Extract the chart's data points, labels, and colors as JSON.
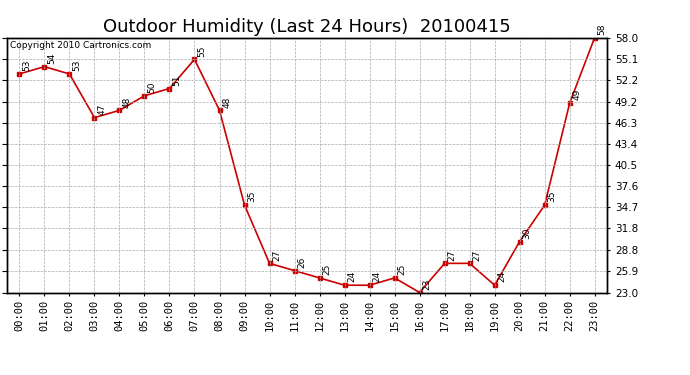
{
  "title": "Outdoor Humidity (Last 24 Hours)  20100415",
  "copyright": "Copyright 2010 Cartronics.com",
  "hours": [
    "00:00",
    "01:00",
    "02:00",
    "03:00",
    "04:00",
    "05:00",
    "06:00",
    "07:00",
    "08:00",
    "09:00",
    "10:00",
    "11:00",
    "12:00",
    "13:00",
    "14:00",
    "15:00",
    "16:00",
    "17:00",
    "18:00",
    "19:00",
    "20:00",
    "21:00",
    "22:00",
    "23:00"
  ],
  "values": [
    53,
    54,
    53,
    47,
    48,
    50,
    51,
    55,
    48,
    35,
    27,
    26,
    25,
    24,
    24,
    25,
    23,
    27,
    27,
    24,
    30,
    35,
    49,
    58
  ],
  "line_color": "#cc0000",
  "marker_color": "#cc0000",
  "grid_color": "#aaaaaa",
  "bg_color": "#ffffff",
  "border_color": "#000000",
  "yticks": [
    23.0,
    25.9,
    28.8,
    31.8,
    34.7,
    37.6,
    40.5,
    43.4,
    46.3,
    49.2,
    52.2,
    55.1,
    58.0
  ],
  "ymin": 23.0,
  "ymax": 58.0,
  "title_fontsize": 13,
  "label_fontsize": 6.5,
  "tick_fontsize": 7.5,
  "copyright_fontsize": 6.5
}
